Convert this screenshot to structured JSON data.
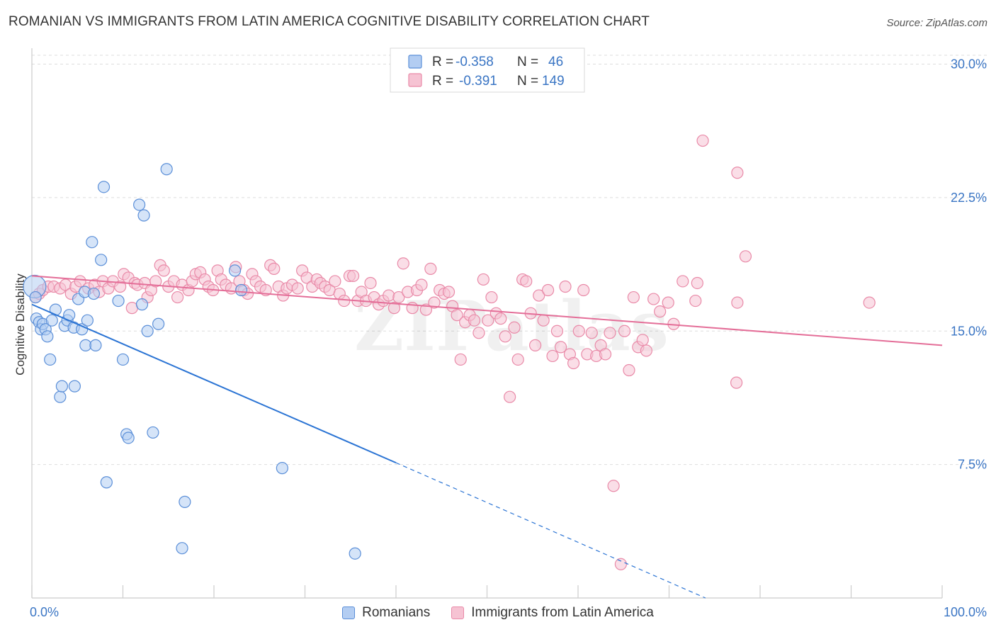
{
  "title": "ROMANIAN VS IMMIGRANTS FROM LATIN AMERICA COGNITIVE DISABILITY CORRELATION CHART",
  "source": "Source: ZipAtlas.com",
  "watermark": "ZIPatlas",
  "colors": {
    "romanians": "#5b8fd8",
    "romanians_fill": "#b3cdf2",
    "romanians_line": "#2b74d4",
    "latin": "#e98aa8",
    "latin_fill": "#f6c3d3",
    "latin_line": "#e46e98",
    "value_text": "#3a75c4",
    "grid": "#dddddd"
  },
  "legend": {
    "rows": [
      {
        "r_label": "R =",
        "r_value": "-0.358",
        "n_label": "N =",
        "n_value": "46"
      },
      {
        "r_label": "R =",
        "r_value": "-0.391",
        "n_label": "N =",
        "n_value": "149"
      }
    ]
  },
  "bottom_legend": {
    "items": [
      {
        "label": "Romanians"
      },
      {
        "label": "Immigrants from Latin America"
      }
    ]
  },
  "chart_data": {
    "type": "scatter",
    "title": "ROMANIAN VS IMMIGRANTS FROM LATIN AMERICA COGNITIVE DISABILITY CORRELATION CHART",
    "xlabel": "",
    "ylabel": "Cognitive Disability",
    "xlim": [
      0,
      100
    ],
    "ylim": [
      0,
      30.5
    ],
    "x_tick_labels": [
      {
        "value": 0,
        "label": "0.0%"
      },
      {
        "value": 100,
        "label": "100.0%"
      }
    ],
    "x_minor_ticks": [
      10,
      20,
      30,
      40,
      50,
      60,
      70,
      80,
      90
    ],
    "y_ticks": [
      {
        "value": 7.5,
        "label": "7.5%"
      },
      {
        "value": 15,
        "label": "15.0%"
      },
      {
        "value": 22.5,
        "label": "22.5%"
      },
      {
        "value": 30,
        "label": "30.0%"
      }
    ],
    "grid": true,
    "legend_position": "top-center",
    "series": [
      {
        "name": "Romanians",
        "r": -0.358,
        "n": 46,
        "trend": {
          "x0": 0,
          "y0": 16.5,
          "x1": 40,
          "y1": 7.6,
          "dashed_to_x": 74,
          "dashed_to_y": 0
        },
        "points": [
          [
            0.3,
            17.5
          ],
          [
            0.4,
            16.9
          ],
          [
            0.5,
            15.7
          ],
          [
            0.8,
            15.5
          ],
          [
            1.0,
            15.1
          ],
          [
            1.2,
            15.4
          ],
          [
            1.5,
            15.1
          ],
          [
            1.7,
            14.7
          ],
          [
            2.0,
            13.4
          ],
          [
            2.2,
            15.6
          ],
          [
            2.6,
            16.2
          ],
          [
            3.1,
            11.3
          ],
          [
            3.3,
            11.9
          ],
          [
            3.6,
            15.3
          ],
          [
            3.9,
            15.6
          ],
          [
            4.1,
            15.9
          ],
          [
            4.6,
            15.2
          ],
          [
            4.7,
            11.9
          ],
          [
            5.1,
            16.8
          ],
          [
            5.5,
            15.1
          ],
          [
            5.8,
            17.2
          ],
          [
            5.9,
            14.2
          ],
          [
            6.1,
            15.6
          ],
          [
            6.6,
            20.0
          ],
          [
            6.8,
            17.1
          ],
          [
            7.0,
            14.2
          ],
          [
            7.6,
            19.0
          ],
          [
            7.9,
            23.1
          ],
          [
            8.2,
            6.5
          ],
          [
            9.5,
            16.7
          ],
          [
            10.0,
            13.4
          ],
          [
            10.4,
            9.2
          ],
          [
            10.6,
            9.0
          ],
          [
            11.8,
            22.1
          ],
          [
            12.1,
            16.5
          ],
          [
            12.3,
            21.5
          ],
          [
            12.7,
            15.0
          ],
          [
            13.3,
            9.3
          ],
          [
            13.9,
            15.4
          ],
          [
            14.8,
            24.1
          ],
          [
            16.5,
            2.8
          ],
          [
            16.8,
            5.4
          ],
          [
            22.3,
            18.4
          ],
          [
            23.0,
            17.3
          ],
          [
            27.5,
            7.3
          ],
          [
            35.5,
            2.5
          ]
        ]
      },
      {
        "name": "Immigrants from Latin America",
        "r": -0.391,
        "n": 149,
        "trend": {
          "x0": 0,
          "y0": 18.1,
          "x1": 100,
          "y1": 14.2
        },
        "points": [
          [
            0.4,
            16.9
          ],
          [
            0.8,
            17.1
          ],
          [
            1.2,
            17.3
          ],
          [
            1.8,
            17.5
          ],
          [
            2.4,
            17.5
          ],
          [
            3.1,
            17.4
          ],
          [
            3.7,
            17.6
          ],
          [
            4.3,
            17.1
          ],
          [
            4.8,
            17.5
          ],
          [
            5.3,
            17.8
          ],
          [
            6.2,
            17.4
          ],
          [
            6.9,
            17.6
          ],
          [
            7.4,
            17.2
          ],
          [
            7.8,
            17.8
          ],
          [
            8.4,
            17.4
          ],
          [
            8.9,
            17.8
          ],
          [
            9.7,
            17.5
          ],
          [
            10.1,
            18.2
          ],
          [
            10.6,
            18.0
          ],
          [
            11.0,
            16.3
          ],
          [
            11.3,
            17.7
          ],
          [
            11.6,
            17.6
          ],
          [
            12.4,
            17.7
          ],
          [
            12.7,
            16.9
          ],
          [
            13.1,
            17.3
          ],
          [
            13.6,
            17.8
          ],
          [
            14.1,
            18.7
          ],
          [
            14.5,
            18.4
          ],
          [
            15.0,
            17.5
          ],
          [
            15.6,
            17.8
          ],
          [
            16.0,
            16.9
          ],
          [
            16.5,
            17.6
          ],
          [
            17.2,
            17.3
          ],
          [
            17.6,
            17.8
          ],
          [
            18.0,
            18.2
          ],
          [
            18.5,
            18.3
          ],
          [
            19.0,
            17.9
          ],
          [
            19.4,
            17.5
          ],
          [
            19.9,
            17.3
          ],
          [
            20.4,
            18.4
          ],
          [
            20.8,
            17.9
          ],
          [
            21.3,
            17.6
          ],
          [
            21.9,
            17.4
          ],
          [
            22.4,
            18.6
          ],
          [
            22.8,
            17.8
          ],
          [
            23.3,
            17.3
          ],
          [
            23.7,
            17.1
          ],
          [
            24.2,
            18.2
          ],
          [
            24.6,
            17.8
          ],
          [
            25.1,
            17.5
          ],
          [
            25.7,
            17.3
          ],
          [
            26.2,
            18.7
          ],
          [
            26.6,
            18.5
          ],
          [
            27.1,
            17.5
          ],
          [
            27.6,
            17.0
          ],
          [
            28.0,
            17.4
          ],
          [
            28.6,
            17.6
          ],
          [
            29.2,
            17.4
          ],
          [
            29.7,
            18.4
          ],
          [
            30.2,
            18.0
          ],
          [
            30.8,
            17.5
          ],
          [
            31.3,
            17.9
          ],
          [
            31.7,
            17.7
          ],
          [
            32.2,
            17.5
          ],
          [
            32.7,
            17.3
          ],
          [
            33.3,
            17.8
          ],
          [
            33.8,
            17.1
          ],
          [
            34.3,
            16.7
          ],
          [
            34.9,
            18.1
          ],
          [
            35.3,
            18.1
          ],
          [
            35.8,
            16.7
          ],
          [
            36.2,
            17.2
          ],
          [
            36.7,
            16.7
          ],
          [
            37.2,
            17.7
          ],
          [
            37.6,
            16.9
          ],
          [
            38.1,
            16.5
          ],
          [
            38.6,
            16.7
          ],
          [
            39.2,
            17.0
          ],
          [
            39.8,
            16.3
          ],
          [
            40.3,
            16.9
          ],
          [
            40.8,
            18.8
          ],
          [
            41.3,
            17.2
          ],
          [
            41.8,
            16.3
          ],
          [
            42.3,
            17.3
          ],
          [
            42.8,
            17.6
          ],
          [
            43.3,
            16.2
          ],
          [
            43.8,
            18.5
          ],
          [
            44.2,
            16.6
          ],
          [
            44.8,
            17.3
          ],
          [
            45.3,
            17.1
          ],
          [
            45.8,
            17.2
          ],
          [
            46.2,
            16.4
          ],
          [
            46.7,
            15.9
          ],
          [
            47.1,
            13.4
          ],
          [
            47.6,
            15.5
          ],
          [
            48.1,
            15.9
          ],
          [
            48.6,
            15.6
          ],
          [
            49.1,
            14.9
          ],
          [
            49.6,
            17.9
          ],
          [
            50.1,
            15.6
          ],
          [
            50.5,
            16.9
          ],
          [
            51.0,
            16.0
          ],
          [
            51.5,
            15.7
          ],
          [
            52.0,
            14.7
          ],
          [
            52.5,
            11.3
          ],
          [
            53.0,
            15.2
          ],
          [
            53.4,
            13.4
          ],
          [
            53.9,
            17.9
          ],
          [
            54.3,
            17.8
          ],
          [
            54.8,
            16.0
          ],
          [
            55.3,
            14.2
          ],
          [
            55.7,
            17.0
          ],
          [
            56.2,
            15.6
          ],
          [
            56.7,
            17.3
          ],
          [
            57.2,
            13.6
          ],
          [
            57.7,
            15.0
          ],
          [
            58.1,
            14.1
          ],
          [
            58.6,
            17.5
          ],
          [
            59.1,
            13.7
          ],
          [
            59.5,
            13.2
          ],
          [
            60.1,
            15.0
          ],
          [
            60.6,
            17.3
          ],
          [
            61.0,
            13.7
          ],
          [
            61.5,
            14.9
          ],
          [
            62.0,
            13.6
          ],
          [
            62.5,
            14.2
          ],
          [
            63.0,
            13.7
          ],
          [
            63.5,
            14.9
          ],
          [
            63.9,
            6.3
          ],
          [
            64.7,
            1.9
          ],
          [
            65.1,
            15.0
          ],
          [
            65.6,
            12.8
          ],
          [
            66.1,
            16.9
          ],
          [
            66.6,
            14.1
          ],
          [
            67.1,
            14.5
          ],
          [
            67.5,
            13.9
          ],
          [
            68.3,
            16.8
          ],
          [
            69.0,
            16.1
          ],
          [
            69.9,
            16.6
          ],
          [
            70.5,
            15.4
          ],
          [
            71.5,
            17.8
          ],
          [
            72.9,
            16.7
          ],
          [
            73.1,
            17.7
          ],
          [
            77.5,
            16.6
          ],
          [
            77.5,
            23.9
          ],
          [
            78.4,
            19.2
          ],
          [
            92.0,
            16.6
          ],
          [
            77.4,
            12.1
          ],
          [
            73.7,
            25.7
          ]
        ]
      }
    ]
  }
}
